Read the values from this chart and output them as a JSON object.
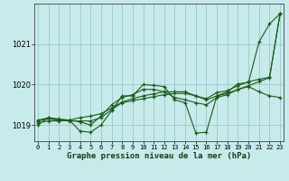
{
  "title": "Graphe pression niveau de la mer (hPa)",
  "bg_color": "#c8eaea",
  "grid_color": "#9ecece",
  "line_color": "#1a5c1a",
  "xmin": 0,
  "xmax": 23,
  "ymin": 1018.6,
  "ymax": 1022.0,
  "yticks": [
    1019,
    1020,
    1021
  ],
  "xticks": [
    0,
    1,
    2,
    3,
    4,
    5,
    6,
    7,
    8,
    9,
    10,
    11,
    12,
    13,
    14,
    15,
    16,
    17,
    18,
    19,
    20,
    21,
    22,
    23
  ],
  "series": [
    [
      1019.0,
      1019.18,
      1019.12,
      1019.12,
      1018.85,
      1018.82,
      1019.0,
      1019.35,
      1019.72,
      1019.72,
      1020.0,
      1019.98,
      1019.95,
      1019.62,
      1019.55,
      1018.8,
      1018.82,
      1019.72,
      1019.82,
      1020.02,
      1020.05,
      1021.05,
      1021.5,
      1021.75
    ],
    [
      1019.12,
      1019.18,
      1019.15,
      1019.12,
      1019.08,
      1019.0,
      1019.22,
      1019.5,
      1019.68,
      1019.75,
      1019.88,
      1019.88,
      1019.82,
      1019.68,
      1019.62,
      1019.55,
      1019.5,
      1019.68,
      1019.75,
      1019.88,
      1019.95,
      1019.82,
      1019.72,
      1019.68
    ],
    [
      1019.1,
      1019.15,
      1019.12,
      1019.1,
      1019.1,
      1019.1,
      1019.18,
      1019.38,
      1019.55,
      1019.6,
      1019.65,
      1019.7,
      1019.75,
      1019.78,
      1019.78,
      1019.72,
      1019.65,
      1019.8,
      1019.85,
      1019.97,
      1020.07,
      1020.13,
      1020.18,
      1021.75
    ],
    [
      1019.05,
      1019.1,
      1019.1,
      1019.12,
      1019.18,
      1019.22,
      1019.28,
      1019.42,
      1019.57,
      1019.65,
      1019.72,
      1019.77,
      1019.82,
      1019.82,
      1019.82,
      1019.72,
      1019.62,
      1019.72,
      1019.78,
      1019.88,
      1019.97,
      1020.07,
      1020.17,
      1021.75
    ]
  ]
}
